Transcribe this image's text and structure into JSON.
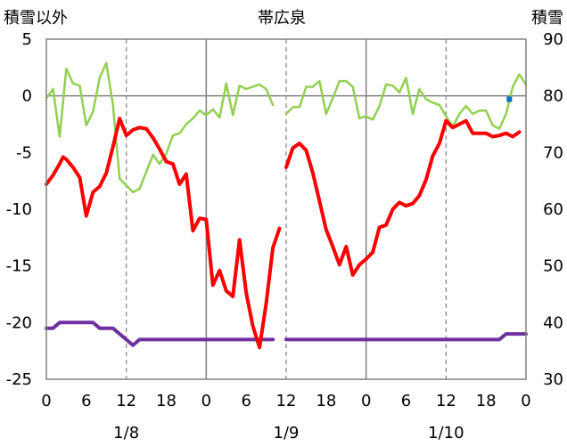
{
  "chart_data": {
    "type": "line",
    "title": "帯広泉",
    "y_left_label": "積雪以外",
    "y_right_label": "積雪",
    "ylim_left": [
      -25,
      5
    ],
    "ylim_right": [
      30,
      90
    ],
    "yticks_left": [
      "5",
      "0",
      "-5",
      "-10",
      "-15",
      "-20",
      "-25"
    ],
    "yticks_right": [
      "90",
      "80",
      "70",
      "60",
      "50",
      "40",
      "30"
    ],
    "xticks": [
      "0",
      "6",
      "12",
      "18",
      "0",
      "6",
      "12",
      "18",
      "0",
      "6",
      "12",
      "18",
      "0"
    ],
    "day_labels": [
      "1/8",
      "1/9",
      "1/10"
    ],
    "x_range_hours": [
      0,
      72
    ],
    "colors": {
      "temperature": "#ff0000",
      "secondary": "#92d050",
      "snow": "#7030a0",
      "marker": "#0070c0"
    },
    "series": [
      {
        "role": "temperature",
        "segments": [
          [
            [
              0,
              -7.8
            ],
            [
              1,
              -7
            ],
            [
              2,
              -6
            ],
            [
              2.5,
              -5.4
            ],
            [
              3,
              -5.6
            ],
            [
              4,
              -6.3
            ],
            [
              5,
              -7.2
            ],
            [
              6,
              -10.6
            ],
            [
              7,
              -8.5
            ],
            [
              8,
              -8
            ],
            [
              9,
              -6.8
            ],
            [
              10,
              -4.5
            ],
            [
              11,
              -2
            ],
            [
              12,
              -3.5
            ],
            [
              13,
              -3
            ],
            [
              14,
              -2.8
            ],
            [
              15,
              -2.9
            ],
            [
              16,
              -3.7
            ],
            [
              17,
              -4.7
            ],
            [
              18,
              -5.8
            ],
            [
              19,
              -6
            ],
            [
              20,
              -7.8
            ],
            [
              21,
              -6.9
            ],
            [
              22,
              -11.9
            ],
            [
              23,
              -10.8
            ],
            [
              24,
              -10.9
            ],
            [
              25,
              -16.7
            ],
            [
              26,
              -15.4
            ],
            [
              27,
              -17.2
            ],
            [
              28,
              -17.7
            ],
            [
              29,
              -12.7
            ],
            [
              30,
              -17.4
            ],
            [
              31,
              -20.3
            ],
            [
              32,
              -22.2
            ],
            [
              33,
              -18.3
            ],
            [
              34,
              -13.4
            ],
            [
              35,
              -11.7
            ]
          ],
          [
            [
              36,
              -6.3
            ],
            [
              37,
              -4.6
            ],
            [
              38,
              -4.2
            ],
            [
              39,
              -4.8
            ],
            [
              40,
              -6.8
            ],
            [
              41,
              -9.3
            ],
            [
              42,
              -11.8
            ],
            [
              43,
              -13.3
            ],
            [
              44,
              -14.9
            ],
            [
              45,
              -13.3
            ],
            [
              46,
              -15.8
            ],
            [
              47,
              -14.9
            ],
            [
              48,
              -14.4
            ],
            [
              49,
              -13.8
            ],
            [
              50,
              -11.6
            ],
            [
              51,
              -11.4
            ],
            [
              52,
              -10
            ],
            [
              53,
              -9.4
            ],
            [
              54,
              -9.7
            ],
            [
              55,
              -9.5
            ],
            [
              56,
              -8.8
            ],
            [
              57,
              -7.4
            ],
            [
              58,
              -5.3
            ],
            [
              59,
              -4.2
            ],
            [
              60,
              -2.2
            ],
            [
              61,
              -2.8
            ],
            [
              62,
              -2.5
            ],
            [
              63,
              -2.2
            ],
            [
              64,
              -3.3
            ],
            [
              65,
              -3.3
            ],
            [
              66,
              -3.3
            ],
            [
              67,
              -3.6
            ],
            [
              68,
              -3.5
            ],
            [
              69,
              -3.3
            ],
            [
              70,
              -3.6
            ],
            [
              71,
              -3.2
            ]
          ]
        ]
      },
      {
        "role": "secondary",
        "segments": [
          [
            [
              0,
              -0.2
            ],
            [
              1,
              0.6
            ],
            [
              2,
              -3.6
            ],
            [
              3,
              2.4
            ],
            [
              4,
              1.1
            ],
            [
              5,
              0.9
            ],
            [
              6,
              -2.6
            ],
            [
              7,
              -1.4
            ],
            [
              8,
              1.6
            ],
            [
              9,
              2.9
            ],
            [
              10,
              -0.8
            ],
            [
              11,
              -7.3
            ],
            [
              12,
              -7.9
            ],
            [
              13,
              -8.5
            ],
            [
              14,
              -8.2
            ],
            [
              15,
              -6.7
            ],
            [
              16,
              -5.2
            ],
            [
              17,
              -6
            ],
            [
              18,
              -5.1
            ],
            [
              19,
              -3.5
            ],
            [
              20,
              -3.3
            ],
            [
              21,
              -2.5
            ],
            [
              22,
              -2
            ],
            [
              23,
              -1.3
            ],
            [
              24,
              -1.7
            ],
            [
              25,
              -1.2
            ],
            [
              26,
              -1.9
            ],
            [
              27,
              1.1
            ],
            [
              28,
              -1.7
            ],
            [
              29,
              0.9
            ],
            [
              30,
              0.6
            ],
            [
              31,
              0.8
            ],
            [
              32,
              1
            ],
            [
              33,
              0.6
            ],
            [
              34,
              -0.8
            ]
          ],
          [
            [
              36,
              -1.6
            ],
            [
              37,
              -1
            ],
            [
              38,
              -1
            ],
            [
              39,
              0.8
            ],
            [
              40,
              0.8
            ],
            [
              41,
              1.3
            ],
            [
              42,
              -1.6
            ],
            [
              43,
              -0.2
            ],
            [
              44,
              1.3
            ],
            [
              45,
              1.3
            ],
            [
              46,
              0.8
            ],
            [
              47,
              -2
            ],
            [
              48,
              -1.8
            ],
            [
              49,
              -2.1
            ],
            [
              50,
              -0.9
            ],
            [
              51,
              1
            ],
            [
              52,
              0.9
            ],
            [
              53,
              0.3
            ],
            [
              54,
              1.6
            ],
            [
              55,
              -1.6
            ],
            [
              56,
              0.6
            ],
            [
              57,
              -0.3
            ],
            [
              58,
              -0.6
            ],
            [
              59,
              -0.8
            ],
            [
              60,
              -1.8
            ],
            [
              61,
              -2.7
            ],
            [
              62,
              -1.6
            ],
            [
              63,
              -0.9
            ],
            [
              64,
              -1.6
            ],
            [
              65,
              -1.3
            ],
            [
              66,
              -1.3
            ],
            [
              67,
              -2.6
            ],
            [
              68,
              -2.9
            ],
            [
              69,
              -1.6
            ],
            [
              70,
              0.8
            ],
            [
              71,
              1.9
            ],
            [
              72,
              1
            ]
          ]
        ]
      },
      {
        "role": "snow",
        "segments": [
          [
            [
              0,
              -20.5
            ],
            [
              1,
              -20.5
            ],
            [
              2,
              -20
            ],
            [
              3,
              -20
            ],
            [
              4,
              -20
            ],
            [
              5,
              -20
            ],
            [
              6,
              -20
            ],
            [
              7,
              -20
            ],
            [
              8,
              -20.5
            ],
            [
              9,
              -20.5
            ],
            [
              10,
              -20.5
            ],
            [
              11,
              -21
            ],
            [
              12,
              -21.5
            ],
            [
              13,
              -22
            ],
            [
              14,
              -21.5
            ],
            [
              15,
              -21.5
            ],
            [
              16,
              -21.5
            ],
            [
              17,
              -21.5
            ],
            [
              18,
              -21.5
            ],
            [
              19,
              -21.5
            ],
            [
              20,
              -21.5
            ],
            [
              21,
              -21.5
            ],
            [
              22,
              -21.5
            ],
            [
              23,
              -21.5
            ],
            [
              24,
              -21.5
            ],
            [
              25,
              -21.5
            ],
            [
              26,
              -21.5
            ],
            [
              27,
              -21.5
            ],
            [
              28,
              -21.5
            ],
            [
              29,
              -21.5
            ],
            [
              30,
              -21.5
            ],
            [
              31,
              -21.5
            ],
            [
              32,
              -21.5
            ],
            [
              33,
              -21.5
            ],
            [
              34,
              -21.5
            ]
          ],
          [
            [
              36,
              -21.5
            ],
            [
              37,
              -21.5
            ],
            [
              38,
              -21.5
            ],
            [
              39,
              -21.5
            ],
            [
              40,
              -21.5
            ],
            [
              41,
              -21.5
            ],
            [
              42,
              -21.5
            ],
            [
              43,
              -21.5
            ],
            [
              44,
              -21.5
            ],
            [
              45,
              -21.5
            ],
            [
              46,
              -21.5
            ],
            [
              47,
              -21.5
            ],
            [
              48,
              -21.5
            ],
            [
              49,
              -21.5
            ],
            [
              50,
              -21.5
            ],
            [
              51,
              -21.5
            ],
            [
              52,
              -21.5
            ],
            [
              53,
              -21.5
            ],
            [
              54,
              -21.5
            ],
            [
              55,
              -21.5
            ],
            [
              56,
              -21.5
            ],
            [
              57,
              -21.5
            ],
            [
              58,
              -21.5
            ],
            [
              59,
              -21.5
            ],
            [
              60,
              -21.5
            ],
            [
              61,
              -21.5
            ],
            [
              62,
              -21.5
            ],
            [
              63,
              -21.5
            ],
            [
              64,
              -21.5
            ],
            [
              65,
              -21.5
            ],
            [
              66,
              -21.5
            ],
            [
              67,
              -21.5
            ],
            [
              68,
              -21.5
            ],
            [
              69,
              -21
            ],
            [
              70,
              -21
            ],
            [
              71,
              -21
            ],
            [
              72,
              -21
            ]
          ]
        ]
      },
      {
        "role": "marker",
        "points": [
          [
            69.5,
            -0.3
          ]
        ]
      }
    ]
  }
}
